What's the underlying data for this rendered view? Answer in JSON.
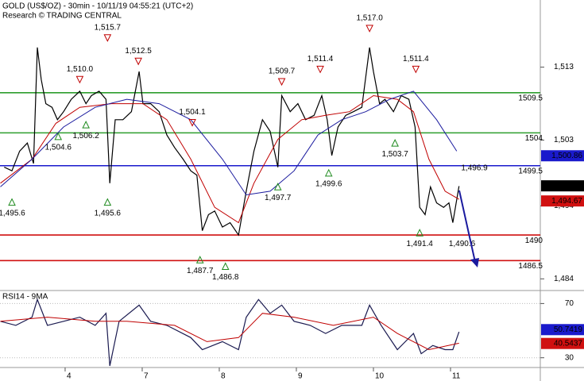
{
  "chart_data": [
    {
      "type": "line",
      "title": "GOLD (US$/OZ) - 30min - 10/11/19 04:55:21 (UTC+2)",
      "subtitle": "Research © TRADING CENTRAL",
      "xlim": [
        0.155,
        7.165
      ],
      "ylim": [
        1482.4,
        1522.2
      ],
      "yticks": [
        {
          "value": 1513,
          "label": "1,513"
        },
        {
          "value": 1503,
          "label": "1,503"
        },
        {
          "value": 1494,
          "label": "1,494"
        },
        {
          "value": 1484,
          "label": "1,484"
        }
      ],
      "series": [
        {
          "color": "#000000",
          "x": [
            0.21,
            0.31,
            0.41,
            0.51,
            0.59,
            0.64,
            0.69,
            0.75,
            0.83,
            0.9,
            0.98,
            1.08,
            1.19,
            1.27,
            1.34,
            1.44,
            1.53,
            1.58,
            1.65,
            1.75,
            1.86,
            1.96,
            2.01,
            2.11,
            2.22,
            2.32,
            2.42,
            2.53,
            2.63,
            2.71,
            2.78,
            2.86,
            2.94,
            3.04,
            3.14,
            3.25,
            3.35,
            3.45,
            3.56,
            3.66,
            3.76,
            3.81,
            3.92,
            4.02,
            4.12,
            4.23,
            4.33,
            4.4,
            4.46,
            4.54,
            4.64,
            4.74,
            4.85,
            4.95,
            5.0,
            5.08,
            5.15,
            5.26,
            5.36,
            5.46,
            5.54,
            5.6,
            5.67,
            5.74,
            5.82,
            5.91,
            5.98,
            6.03,
            6.11
          ],
          "values": [
            1499.3,
            1498.8,
            1501.5,
            1502.6,
            1499.8,
            1515.7,
            1511.3,
            1508.0,
            1507.5,
            1505.8,
            1506.9,
            1508.6,
            1509.7,
            1508.0,
            1509.1,
            1509.7,
            1508.6,
            1497.1,
            1505.8,
            1505.8,
            1506.9,
            1512.4,
            1508.0,
            1508.0,
            1506.9,
            1503.7,
            1502.0,
            1500.4,
            1498.8,
            1498.2,
            1490.6,
            1492.8,
            1493.3,
            1491.1,
            1491.7,
            1490.0,
            1496.0,
            1501.5,
            1505.8,
            1504.2,
            1499.3,
            1509.1,
            1506.9,
            1508.0,
            1505.8,
            1506.4,
            1509.1,
            1505.8,
            1500.9,
            1504.8,
            1506.4,
            1506.9,
            1507.5,
            1515.7,
            1512.4,
            1508.0,
            1508.6,
            1506.9,
            1509.1,
            1508.6,
            1504.8,
            1493.8,
            1492.8,
            1496.6,
            1494.4,
            1493.8,
            1494.4,
            1491.7,
            1496.7
          ]
        },
        {
          "color": "#c00000",
          "x": [
            0.16,
            0.57,
            0.88,
            1.19,
            1.6,
            2.01,
            2.32,
            2.63,
            2.94,
            3.25,
            3.45,
            3.76,
            4.07,
            4.38,
            4.69,
            5.0,
            5.31,
            5.52,
            5.72,
            5.93,
            6.11
          ],
          "values": [
            1497.1,
            1500.4,
            1505.3,
            1507.5,
            1508.0,
            1508.0,
            1505.8,
            1500.4,
            1493.8,
            1491.7,
            1497.1,
            1503.1,
            1505.8,
            1506.4,
            1506.9,
            1509.1,
            1508.6,
            1506.9,
            1500.4,
            1496.0,
            1494.9
          ]
        },
        {
          "color": "#1a1a9e",
          "x": [
            0.16,
            0.57,
            0.98,
            1.39,
            1.8,
            2.22,
            2.63,
            3.04,
            3.35,
            3.66,
            3.97,
            4.28,
            4.59,
            4.9,
            5.21,
            5.52,
            5.82,
            6.08
          ],
          "values": [
            1496.6,
            1500.4,
            1504.8,
            1507.5,
            1508.6,
            1508.0,
            1505.8,
            1500.4,
            1495.5,
            1496.0,
            1498.8,
            1503.7,
            1505.8,
            1506.9,
            1508.6,
            1509.7,
            1505.8,
            1501.5
          ]
        }
      ],
      "levels": [
        {
          "value": 1509.5,
          "color": "#2e9e2e"
        },
        {
          "value": 1504,
          "color": "#2e9e2e"
        },
        {
          "value": 1499.5,
          "color": "#1a1acc"
        },
        {
          "value": 1490,
          "color": "#d01010"
        },
        {
          "value": 1486.5,
          "color": "#d01010"
        }
      ],
      "price_labels": [
        {
          "value": 1500.86,
          "label": "1,500.86",
          "color": "#1a1acc"
        },
        {
          "value": 1496.74,
          "label": "1,496.74",
          "color": "#000000"
        },
        {
          "value": 1494.67,
          "label": "1,494.67",
          "color": "#d01010"
        }
      ],
      "annotations": [
        {
          "x": 1.19,
          "value": 1510,
          "label": "1,510.0",
          "kind": "high",
          "marker": true
        },
        {
          "x": 1.55,
          "value": 1515.7,
          "label": "1,515.7",
          "kind": "high",
          "marker": true
        },
        {
          "x": 1.95,
          "value": 1512.5,
          "label": "1,512.5",
          "kind": "high",
          "marker": true
        },
        {
          "x": 2.65,
          "value": 1504.1,
          "label": "1,504.1",
          "kind": "high",
          "marker": true
        },
        {
          "x": 3.81,
          "value": 1509.7,
          "label": "1,509.7",
          "kind": "high",
          "marker": true
        },
        {
          "x": 4.31,
          "value": 1511.4,
          "label": "1,511.4",
          "kind": "high",
          "marker": true
        },
        {
          "x": 4.95,
          "value": 1517,
          "label": "1,517.0",
          "kind": "high",
          "marker": true
        },
        {
          "x": 5.55,
          "value": 1511.4,
          "label": "1,511.4",
          "kind": "high",
          "marker": true
        },
        {
          "x": 0.31,
          "value": 1495.6,
          "label": "1,495.6",
          "kind": "low",
          "marker": true
        },
        {
          "x": 0.91,
          "value": 1504.6,
          "label": "1,504.6",
          "kind": "low",
          "marker": true
        },
        {
          "x": 1.27,
          "value": 1506.2,
          "label": "1,506.2",
          "kind": "low",
          "marker": true
        },
        {
          "x": 1.55,
          "value": 1495.6,
          "label": "1,495.6",
          "kind": "low",
          "marker": true
        },
        {
          "x": 2.75,
          "value": 1487.7,
          "label": "1,487.7",
          "kind": "low",
          "marker": true
        },
        {
          "x": 3.08,
          "value": 1486.8,
          "label": "1,486.8",
          "kind": "low",
          "marker": true
        },
        {
          "x": 3.76,
          "value": 1497.7,
          "label": "1,497.7",
          "kind": "low",
          "marker": true
        },
        {
          "x": 4.42,
          "value": 1499.6,
          "label": "1,499.6",
          "kind": "low",
          "marker": true
        },
        {
          "x": 5.28,
          "value": 1503.7,
          "label": "1,503.7",
          "kind": "low",
          "marker": true
        },
        {
          "x": 5.6,
          "value": 1491.4,
          "label": "1,491.4",
          "kind": "low",
          "marker": true
        },
        {
          "x": 6.31,
          "value": 1496.9,
          "label": "1,496.9",
          "kind": "high",
          "marker": false
        },
        {
          "x": 6.15,
          "value": 1490.6,
          "label": "1,490.6",
          "kind": "low",
          "marker": false
        }
      ]
    },
    {
      "type": "line",
      "title": "RSI14 - 9MA",
      "xlim": [
        0.155,
        7.165
      ],
      "ylim": [
        22.8,
        79.6
      ],
      "yticks": [
        70,
        30
      ],
      "grid": true,
      "xticks": [
        {
          "value": 1,
          "label": "4"
        },
        {
          "value": 2,
          "label": "7"
        },
        {
          "value": 3,
          "label": "8"
        },
        {
          "value": 4,
          "label": "9"
        },
        {
          "value": 5,
          "label": "10"
        },
        {
          "value": 6,
          "label": "11"
        }
      ],
      "series": [
        {
          "color": "#1a1a50",
          "x": [
            0.16,
            0.36,
            0.57,
            0.64,
            0.77,
            0.98,
            1.19,
            1.39,
            1.53,
            1.58,
            1.7,
            1.96,
            2.11,
            2.32,
            2.63,
            2.78,
            3.04,
            3.25,
            3.35,
            3.51,
            3.66,
            3.81,
            3.97,
            4.18,
            4.38,
            4.59,
            4.85,
            4.95,
            5.1,
            5.31,
            5.52,
            5.62,
            5.77,
            5.93,
            6.03,
            6.11
          ],
          "values": [
            56.9,
            53.9,
            59.9,
            73.0,
            53.9,
            56.9,
            59.9,
            53.9,
            62.8,
            24.0,
            56.9,
            68.8,
            56.9,
            53.9,
            44.9,
            36.0,
            41.9,
            36.0,
            59.9,
            73.0,
            62.8,
            68.8,
            56.9,
            53.9,
            47.9,
            53.9,
            53.9,
            68.8,
            53.9,
            36.0,
            47.9,
            33.0,
            39.0,
            36.0,
            36.0,
            49.1
          ]
        },
        {
          "color": "#c00000",
          "x": [
            0.16,
            0.77,
            1.39,
            1.8,
            2.42,
            2.84,
            3.25,
            3.56,
            3.97,
            4.48,
            5.0,
            5.31,
            5.72,
            6.11
          ],
          "values": [
            56.9,
            59.9,
            56.9,
            56.9,
            53.9,
            41.9,
            44.9,
            62.8,
            59.9,
            53.9,
            59.9,
            47.9,
            36.0,
            40.7
          ]
        }
      ],
      "price_labels": [
        {
          "value": 50.7419,
          "color": "#1a1acc"
        },
        {
          "value": 40.5437,
          "color": "#d01010"
        }
      ]
    }
  ]
}
